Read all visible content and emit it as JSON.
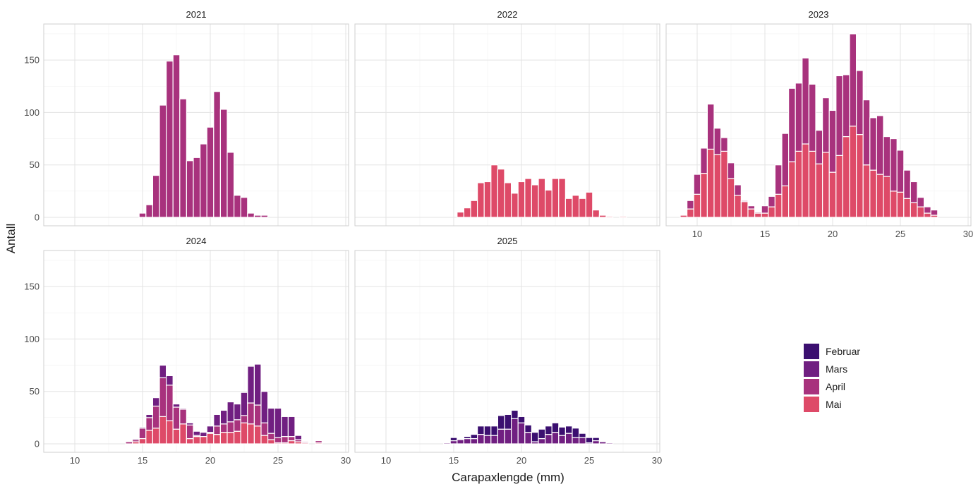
{
  "chart_data": {
    "type": "bar",
    "stacked": true,
    "faceted": true,
    "xlabel": "Carapaxlengde (mm)",
    "ylabel": "Antall",
    "xlim": [
      8,
      30
    ],
    "ylim": [
      0,
      180
    ],
    "x_ticks": [
      10,
      15,
      20,
      25,
      30
    ],
    "y_ticks": [
      0,
      50,
      100,
      150
    ],
    "bin_width": 0.5,
    "grid": true,
    "legend_position": "right",
    "legend": [
      "Februar",
      "Mars",
      "April",
      "Mai"
    ],
    "colors": {
      "Februar": "#3b0f70",
      "Mars": "#701f81",
      "April": "#a8327d",
      "Mai": "#de4a68"
    },
    "facets": [
      {
        "title": "2021",
        "x_start": 15.0,
        "series": [
          {
            "name": "April",
            "values": [
              4,
              12,
              40,
              107,
              149,
              155,
              113,
              54,
              57,
              70,
              86,
              120,
              103,
              62,
              21,
              19,
              4,
              2,
              2
            ]
          }
        ]
      },
      {
        "title": "2022",
        "x_start": 15.5,
        "series": [
          {
            "name": "Mai",
            "values": [
              5,
              9,
              16,
              33,
              34,
              50,
              46,
              33,
              23,
              34,
              37,
              31,
              37,
              26,
              37,
              37,
              18,
              21,
              18,
              24,
              7,
              2,
              1,
              0,
              1
            ]
          }
        ]
      },
      {
        "title": "2023",
        "x_start": 9.0,
        "series": [
          {
            "name": "Mai",
            "values": [
              2,
              8,
              22,
              42,
              65,
              60,
              63,
              37,
              21,
              15,
              8,
              4,
              4,
              10,
              22,
              30,
              53,
              63,
              70,
              63,
              51,
              62,
              43,
              59,
              77,
              87,
              79,
              50,
              45,
              41,
              39,
              25,
              24,
              18,
              14,
              10,
              4,
              2
            ]
          },
          {
            "name": "April",
            "values": [
              0,
              8,
              19,
              24,
              43,
              25,
              13,
              15,
              10,
              1,
              3,
              1,
              7,
              10,
              28,
              50,
              70,
              65,
              82,
              64,
              32,
              52,
              59,
              76,
              59,
              88,
              61,
              62,
              50,
              56,
              38,
              50,
              40,
              27,
              20,
              9,
              6,
              5
            ]
          }
        ]
      },
      {
        "title": "2024",
        "x_start": 14.0,
        "series": [
          {
            "name": "Mai",
            "values": [
              0,
              2,
              5,
              13,
              15,
              26,
              22,
              14,
              19,
              5,
              7,
              7,
              10,
              9,
              11,
              11,
              12,
              20,
              19,
              17,
              8,
              4,
              1,
              1,
              3,
              2,
              1,
              0,
              1
            ]
          },
          {
            "name": "April",
            "values": [
              2,
              2,
              10,
              12,
              21,
              37,
              34,
              21,
              14,
              13,
              1,
              0,
              1,
              8,
              8,
              10,
              11,
              7,
              20,
              20,
              12,
              6,
              5,
              6,
              4,
              2,
              1,
              0,
              2
            ]
          },
          {
            "name": "Mars",
            "values": [
              0,
              1,
              1,
              3,
              8,
              12,
              9,
              3,
              1,
              2,
              4,
              4,
              6,
              11,
              13,
              19,
              15,
              22,
              35,
              39,
              30,
              24,
              28,
              19,
              19,
              4,
              0,
              0,
              0
            ]
          }
        ]
      },
      {
        "title": "2025",
        "x_start": 14.5,
        "series": [
          {
            "name": "Mars",
            "values": [
              1,
              3,
              4,
              5,
              5,
              9,
              8,
              8,
              14,
              14,
              24,
              20,
              11,
              2,
              5,
              9,
              11,
              8,
              10,
              6,
              6,
              1,
              3,
              2,
              1
            ]
          },
          {
            "name": "Februar",
            "values": [
              0,
              3,
              0,
              2,
              4,
              8,
              9,
              9,
              13,
              14,
              8,
              6,
              7,
              9,
              9,
              8,
              9,
              8,
              7,
              9,
              4,
              5,
              3,
              0,
              0
            ]
          }
        ]
      }
    ]
  }
}
